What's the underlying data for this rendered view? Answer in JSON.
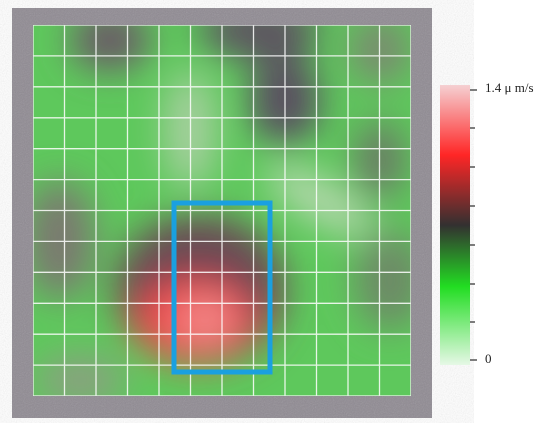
{
  "colorbar": {
    "max_label": "1.4 μ m/s",
    "min_label": "0"
  }
}
